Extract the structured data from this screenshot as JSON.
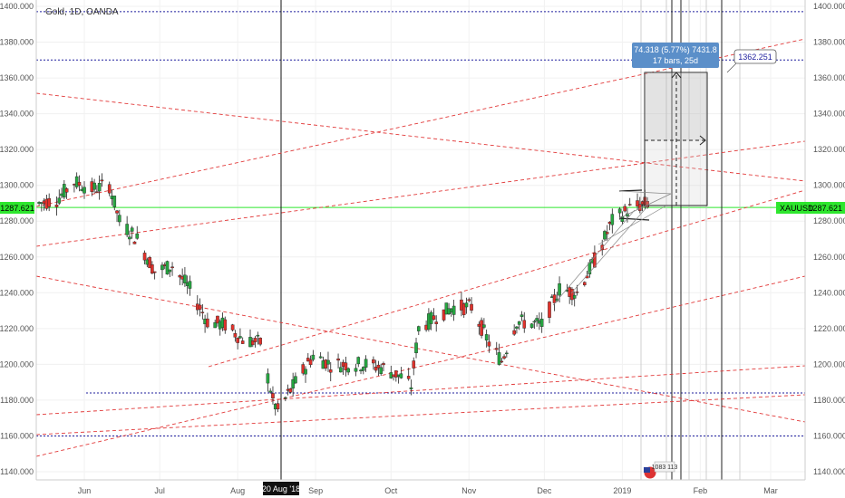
{
  "chart_data": {
    "type": "candlestick",
    "title": "Gold, 1D, OANDA",
    "symbol": "XAUUSD",
    "current_price": 1287.621,
    "ylim": [
      1135,
      1405
    ],
    "y_ticks": [
      "1400.000",
      "1380.000",
      "1360.000",
      "1340.000",
      "1320.000",
      "1300.000",
      "1280.000",
      "1260.000",
      "1240.000",
      "1220.000",
      "1200.000",
      "1180.000",
      "1160.000",
      "1140.000"
    ],
    "x_ticks": [
      {
        "label": "Jun",
        "date": "2018-06-01"
      },
      {
        "label": "Jul",
        "date": "2018-07-01"
      },
      {
        "label": "Aug",
        "date": "2018-08-01"
      },
      {
        "label": "Sep",
        "date": "2018-09-01"
      },
      {
        "label": "Oct",
        "date": "2018-10-01"
      },
      {
        "label": "Nov",
        "date": "2018-11-01"
      },
      {
        "label": "Dec",
        "date": "2018-12-01"
      },
      {
        "label": "2019",
        "date": "2019-01-01"
      },
      {
        "label": "Feb",
        "date": "2019-02-01"
      },
      {
        "label": "Mar",
        "date": "2019-03-01"
      }
    ],
    "highlighted_date_label": "20 Aug '18",
    "marked_price_label": "1362.251",
    "measure_label_line1": "74.318 (5.77%) 7431.8",
    "measure_label_line2": "17 bars, 25d",
    "bottom_badge": "1083 113",
    "candle_keypoints": [
      [
        "2018-05-14",
        1290
      ],
      [
        "2018-05-21",
        1292
      ],
      [
        "2018-05-28",
        1302
      ],
      [
        "2018-06-04",
        1298
      ],
      [
        "2018-06-11",
        1300
      ],
      [
        "2018-06-15",
        1280
      ],
      [
        "2018-06-22",
        1270
      ],
      [
        "2018-06-29",
        1252
      ],
      [
        "2018-07-06",
        1255
      ],
      [
        "2018-07-13",
        1242
      ],
      [
        "2018-07-20",
        1224
      ],
      [
        "2018-07-27",
        1222
      ],
      [
        "2018-08-03",
        1214
      ],
      [
        "2018-08-10",
        1212
      ],
      [
        "2018-08-15",
        1180
      ],
      [
        "2018-08-17",
        1174
      ],
      [
        "2018-08-24",
        1190
      ],
      [
        "2018-08-31",
        1205
      ],
      [
        "2018-09-07",
        1200
      ],
      [
        "2018-09-14",
        1200
      ],
      [
        "2018-09-21",
        1200
      ],
      [
        "2018-09-28",
        1198
      ],
      [
        "2018-10-05",
        1193
      ],
      [
        "2018-10-09",
        1188
      ],
      [
        "2018-10-12",
        1220
      ],
      [
        "2018-10-19",
        1227
      ],
      [
        "2018-10-26",
        1232
      ],
      [
        "2018-11-02",
        1232
      ],
      [
        "2018-11-09",
        1212
      ],
      [
        "2018-11-14",
        1202
      ],
      [
        "2018-11-20",
        1224
      ],
      [
        "2018-11-30",
        1222
      ],
      [
        "2018-12-07",
        1242
      ],
      [
        "2018-12-14",
        1240
      ],
      [
        "2018-12-21",
        1258
      ],
      [
        "2018-12-28",
        1280
      ],
      [
        "2019-01-04",
        1287
      ],
      [
        "2019-01-11",
        1290
      ]
    ]
  },
  "colors": {
    "up": "#26a641",
    "down": "#e0312b",
    "current_price": "#2ee62e",
    "horizontal_level": "#1f1f9e",
    "trendline": "#e23a3a",
    "label_box": "#5b8fc9"
  }
}
